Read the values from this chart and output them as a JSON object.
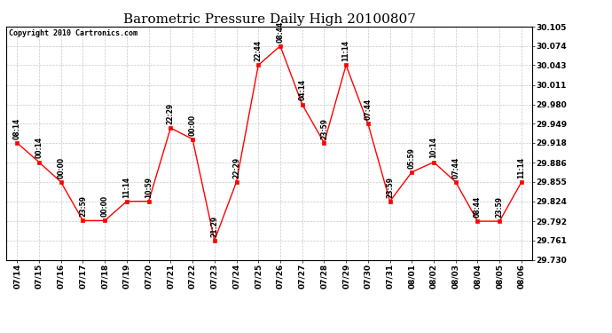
{
  "title": "Barometric Pressure Daily High 20100807",
  "copyright": "Copyright 2010 Cartronics.com",
  "x_labels": [
    "07/14",
    "07/15",
    "07/16",
    "07/17",
    "07/18",
    "07/19",
    "07/20",
    "07/21",
    "07/22",
    "07/23",
    "07/24",
    "07/25",
    "07/26",
    "07/27",
    "07/28",
    "07/29",
    "07/30",
    "07/31",
    "08/01",
    "08/02",
    "08/03",
    "08/04",
    "08/05",
    "08/06"
  ],
  "y_values": [
    29.918,
    29.887,
    29.855,
    29.793,
    29.793,
    29.824,
    29.824,
    29.942,
    29.924,
    29.761,
    29.855,
    30.043,
    30.074,
    29.98,
    29.918,
    30.043,
    29.949,
    29.824,
    29.871,
    29.887,
    29.855,
    29.792,
    29.792,
    29.855
  ],
  "time_labels": [
    "08:14",
    "00:14",
    "00:00",
    "23:59",
    "00:00",
    "11:14",
    "10:59",
    "22:29",
    "00:00",
    "21:29",
    "22:29",
    "22:44",
    "08:44",
    "04:14",
    "23:59",
    "11:14",
    "07:44",
    "23:59",
    "05:59",
    "10:14",
    "07:44",
    "08:44",
    "23:59",
    "11:14"
  ],
  "ylim_min": 29.73,
  "ylim_max": 30.105,
  "ytick_values": [
    29.73,
    29.761,
    29.792,
    29.824,
    29.855,
    29.886,
    29.918,
    29.949,
    29.98,
    30.011,
    30.043,
    30.074,
    30.105
  ],
  "ytick_labels": [
    "29.730",
    "29.761",
    "29.792",
    "29.824",
    "29.855",
    "29.886",
    "29.918",
    "29.949",
    "29.980",
    "30.011",
    "30.043",
    "30.074",
    "30.105"
  ],
  "line_color": "#FF0000",
  "marker_color": "#FF0000",
  "bg_color": "#FFFFFF",
  "plot_bg_color": "#FFFFFF",
  "grid_color": "#C8C8C8",
  "title_fontsize": 11,
  "copyright_fontsize": 6,
  "tick_label_fontsize": 6.5,
  "annotation_fontsize": 5.5
}
